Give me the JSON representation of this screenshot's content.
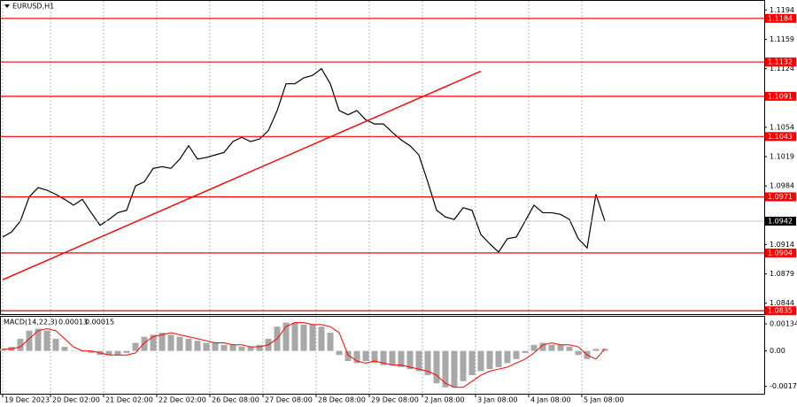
{
  "chart_data": [
    {
      "type": "step",
      "title": "EURUSD,H1",
      "color": "#000000",
      "grid": true,
      "xlim": [
        -0.3,
        86
      ],
      "xticks": [
        {
          "value": 0,
          "label": "19 Dec 2023"
        },
        {
          "value": 5.4,
          "label": "20 Dec 02:00"
        },
        {
          "value": 11.4,
          "label": "21 Dec 02:00"
        },
        {
          "value": 17.4,
          "label": "22 Dec 02:00"
        },
        {
          "value": 23.4,
          "label": "26 Dec 08:00"
        },
        {
          "value": 29.4,
          "label": "27 Dec 08:00"
        },
        {
          "value": 35.4,
          "label": "28 Dec 08:00"
        },
        {
          "value": 41.4,
          "label": "29 Dec 08:00"
        },
        {
          "value": 47.4,
          "label": "2 Jan 08:00"
        },
        {
          "value": 53.4,
          "label": "3 Jan 08:00"
        },
        {
          "value": 59.4,
          "label": "4 Jan 08:00"
        },
        {
          "value": 65.4,
          "label": "5 Jan 08:00"
        }
      ],
      "ylim": [
        1.0831,
        1.1206
      ],
      "yticks": [
        1.1194,
        1.1159,
        1.1124,
        1.1054,
        1.1019,
        1.0984,
        1.0914,
        1.0879,
        1.0844
      ],
      "values": [
        1.0923,
        1.0929,
        1.0942,
        1.0971,
        1.0982,
        1.0979,
        1.0974,
        1.0968,
        1.0961,
        1.0968,
        1.0952,
        1.0937,
        1.0944,
        1.0952,
        1.0955,
        1.0984,
        1.0989,
        1.1005,
        1.1007,
        1.1005,
        1.1016,
        1.1032,
        1.1016,
        1.1018,
        1.1021,
        1.1024,
        1.1037,
        1.1042,
        1.1037,
        1.104,
        1.105,
        1.1074,
        1.1106,
        1.1106,
        1.1113,
        1.1116,
        1.1124,
        1.1106,
        1.1074,
        1.1069,
        1.1074,
        1.1063,
        1.1058,
        1.1058,
        1.1048,
        1.1039,
        1.1032,
        1.1021,
        1.0989,
        1.0955,
        1.0947,
        1.0944,
        1.0958,
        1.0955,
        1.0926,
        1.0915,
        1.0905,
        1.0921,
        1.0923,
        1.0942,
        1.0961,
        1.0952,
        1.0952,
        1.095,
        1.0944,
        1.0921,
        1.091,
        1.0974,
        1.0942
      ],
      "levels": {
        "values": [
          1.1184,
          1.1132,
          1.1091,
          1.1043,
          1.0971,
          1.0904,
          1.0835
        ],
        "color": "#ff0000"
      },
      "last": 1.0942,
      "trendline": {
        "x": [
          0,
          54
        ],
        "values": [
          1.0872,
          1.1121
        ],
        "color": "#ff0000"
      }
    },
    {
      "type": "bar",
      "label": "MACD(14,22,3)",
      "readout": [
        0.00013,
        0.00015
      ],
      "color": "#a8a8a8",
      "ylim": [
        -0.00216,
        0.00169
      ],
      "yticks": [
        0.00134,
        {
          "value": 0,
          "label": "0.00"
        },
        -0.00175
      ],
      "values": [
        0.0001,
        0.0002,
        0.0006,
        0.001,
        0.0011,
        0.001,
        0.0006,
        0.0002,
        0,
        0,
        -0.0001,
        -0.0002,
        -0.0002,
        -0.0002,
        -0.0001,
        0.0004,
        0.0007,
        0.0008,
        0.0009,
        0.0008,
        0.0007,
        0.0006,
        0.0005,
        0.0004,
        0.0004,
        0.0003,
        0.0003,
        0.0002,
        0.0002,
        0.0003,
        0.0006,
        0.0012,
        0.0014,
        0.0014,
        0.0013,
        0.0013,
        0.0012,
        0.0009,
        -0.0002,
        -0.0005,
        -0.0006,
        -0.0005,
        -0.0006,
        -0.0007,
        -0.0007,
        -0.0008,
        -0.0009,
        -0.001,
        -0.0012,
        -0.0016,
        -0.0018,
        -0.0018,
        -0.0015,
        -0.0012,
        -0.001,
        -0.0009,
        -0.0008,
        -0.0006,
        -0.0004,
        -0.0001,
        0.0003,
        0.0004,
        0.0003,
        0.0003,
        0.0002,
        -0.0002,
        -0.0004,
        0.0001,
        0.0001
      ],
      "signal": {
        "color": "#ff0000",
        "values": [
          0.0001,
          0.0001,
          0.0002,
          0.0006,
          0.001,
          0.0011,
          0.001,
          0.0006,
          0.0002,
          0,
          0,
          -0.0001,
          -0.0002,
          -0.0002,
          -0.0002,
          -0.0001,
          0.0004,
          0.0007,
          0.0008,
          0.0009,
          0.0008,
          0.0007,
          0.0006,
          0.0005,
          0.0004,
          0.0004,
          0.0003,
          0.0003,
          0.0002,
          0.0002,
          0.0003,
          0.0006,
          0.0012,
          0.0014,
          0.0014,
          0.0013,
          0.0013,
          0.0012,
          0.0009,
          -0.0002,
          -0.0005,
          -0.0006,
          -0.0005,
          -0.0006,
          -0.0007,
          -0.0007,
          -0.0008,
          -0.0009,
          -0.001,
          -0.0012,
          -0.0016,
          -0.0018,
          -0.0018,
          -0.0015,
          -0.0012,
          -0.001,
          -0.0009,
          -0.0008,
          -0.0006,
          -0.0004,
          -0.0001,
          0.0003,
          0.0004,
          0.0003,
          0.0003,
          0.0002,
          -0.0002,
          -0.0004,
          0.0001
        ]
      }
    }
  ]
}
